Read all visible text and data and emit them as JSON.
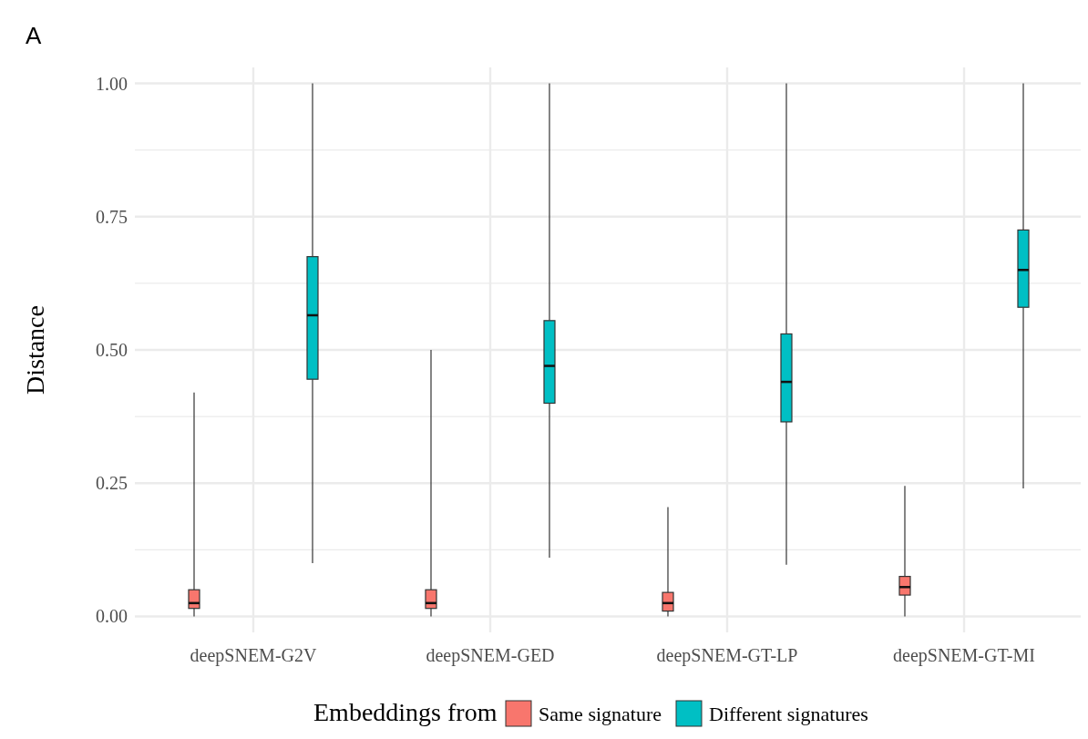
{
  "chart_data": {
    "type": "box",
    "ylabel": "Distance",
    "legend_title": "Embeddings from",
    "legend": "bottom",
    "grid": true,
    "categories": [
      "deepSNEM-G2V",
      "deepSNEM-GED",
      "deepSNEM-GT-LP",
      "deepSNEM-GT-MI"
    ],
    "ylim": [
      -0.03,
      1.03
    ],
    "yticks": [
      {
        "value": 0,
        "label": "0.00"
      },
      {
        "value": 0.125,
        "label": null
      },
      {
        "value": 0.25,
        "label": "0.25"
      },
      {
        "value": 0.375,
        "label": null
      },
      {
        "value": 0.5,
        "label": "0.50"
      },
      {
        "value": 0.625,
        "label": null
      },
      {
        "value": 0.75,
        "label": "0.75"
      },
      {
        "value": 0.875,
        "label": null
      },
      {
        "value": 1,
        "label": "1.00"
      }
    ],
    "annotations": [
      "A"
    ],
    "series": [
      {
        "name": "Same signature",
        "color": "#f8766d",
        "boxes": [
          {
            "low": 0,
            "q1": 0.015,
            "median": 0.025,
            "q3": 0.05,
            "high": 0.42
          },
          {
            "low": 0,
            "q1": 0.015,
            "median": 0.025,
            "q3": 0.05,
            "high": 0.5
          },
          {
            "low": 0,
            "q1": 0.01,
            "median": 0.025,
            "q3": 0.045,
            "high": 0.205
          },
          {
            "low": 0,
            "q1": 0.04,
            "median": 0.055,
            "q3": 0.075,
            "high": 0.245
          }
        ]
      },
      {
        "name": "Different signatures",
        "color": "#00bfc4",
        "boxes": [
          {
            "low": 0.1,
            "q1": 0.445,
            "median": 0.565,
            "q3": 0.675,
            "high": 1
          },
          {
            "low": 0.11,
            "q1": 0.4,
            "median": 0.47,
            "q3": 0.555,
            "high": 1
          },
          {
            "low": 0.097,
            "q1": 0.365,
            "median": 0.44,
            "q3": 0.53,
            "high": 1
          },
          {
            "low": 0.24,
            "q1": 0.58,
            "median": 0.65,
            "q3": 0.725,
            "high": 1
          }
        ]
      }
    ]
  }
}
